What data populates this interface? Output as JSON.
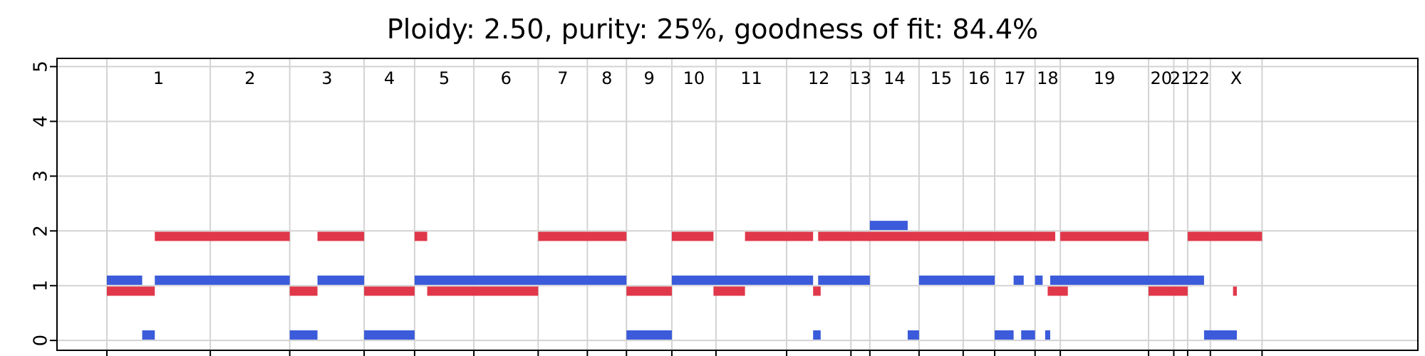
{
  "chart_data": {
    "type": "segments",
    "title": "Ploidy: 2.50, purity: 25%, goodness of fit: 84.4%",
    "xlabel": "",
    "ylabel": "",
    "ylim": [
      -0.18,
      5.15
    ],
    "yticks": [
      0,
      1,
      2,
      3,
      4,
      5
    ],
    "grid": true,
    "colors": {
      "major": "#e0384a",
      "minor": "#3b5bdb"
    },
    "genome_length": 100,
    "chromosomes": [
      {
        "name": "1",
        "start": 0.0,
        "end": 8.2
      },
      {
        "name": "2",
        "start": 8.2,
        "end": 14.5
      },
      {
        "name": "3",
        "start": 14.5,
        "end": 20.4
      },
      {
        "name": "4",
        "start": 20.4,
        "end": 24.4
      },
      {
        "name": "5",
        "start": 24.4,
        "end": 29.1
      },
      {
        "name": "6",
        "start": 29.1,
        "end": 34.2
      },
      {
        "name": "7",
        "start": 34.2,
        "end": 38.1
      },
      {
        "name": "8",
        "start": 38.1,
        "end": 41.2
      },
      {
        "name": "9",
        "start": 41.2,
        "end": 44.8
      },
      {
        "name": "10",
        "start": 44.8,
        "end": 48.3
      },
      {
        "name": "11",
        "start": 48.3,
        "end": 53.9
      },
      {
        "name": "12",
        "start": 53.9,
        "end": 59.0
      },
      {
        "name": "13",
        "start": 59.0,
        "end": 60.5
      },
      {
        "name": "14",
        "start": 60.5,
        "end": 64.4
      },
      {
        "name": "15",
        "start": 64.4,
        "end": 67.9
      },
      {
        "name": "16",
        "start": 67.9,
        "end": 70.4
      },
      {
        "name": "17",
        "start": 70.4,
        "end": 73.6
      },
      {
        "name": "18",
        "start": 73.6,
        "end": 75.6
      },
      {
        "name": "19",
        "start": 75.6,
        "end": 82.6
      },
      {
        "name": "20",
        "start": 82.6,
        "end": 84.6
      },
      {
        "name": "21",
        "start": 84.6,
        "end": 85.7
      },
      {
        "name": "22",
        "start": 85.7,
        "end": 87.5
      },
      {
        "name": "X",
        "start": 87.5,
        "end": 91.6
      }
    ],
    "series": [
      {
        "role": "major",
        "segments": [
          {
            "start": 0.0,
            "end": 3.8,
            "cn": 0.9
          },
          {
            "start": 3.8,
            "end": 14.5,
            "cn": 1.9
          },
          {
            "start": 14.5,
            "end": 16.7,
            "cn": 0.9
          },
          {
            "start": 16.7,
            "end": 20.4,
            "cn": 1.9
          },
          {
            "start": 20.4,
            "end": 24.4,
            "cn": 0.9
          },
          {
            "start": 24.4,
            "end": 25.4,
            "cn": 1.9
          },
          {
            "start": 25.4,
            "end": 34.2,
            "cn": 0.9
          },
          {
            "start": 34.2,
            "end": 41.2,
            "cn": 1.9
          },
          {
            "start": 41.2,
            "end": 44.8,
            "cn": 0.9
          },
          {
            "start": 44.8,
            "end": 48.1,
            "cn": 1.9
          },
          {
            "start": 48.1,
            "end": 50.6,
            "cn": 0.9
          },
          {
            "start": 50.6,
            "end": 56.0,
            "cn": 1.9
          },
          {
            "start": 56.0,
            "end": 56.6,
            "cn": 0.9
          },
          {
            "start": 56.4,
            "end": 75.2,
            "cn": 1.9
          },
          {
            "start": 74.6,
            "end": 76.2,
            "cn": 0.9
          },
          {
            "start": 75.6,
            "end": 82.6,
            "cn": 1.9
          },
          {
            "start": 82.6,
            "end": 85.7,
            "cn": 0.9
          },
          {
            "start": 85.7,
            "end": 91.6,
            "cn": 1.9
          },
          {
            "start": 89.3,
            "end": 89.6,
            "cn": 0.9
          }
        ]
      },
      {
        "role": "minor",
        "segments": [
          {
            "start": 0.0,
            "end": 2.8,
            "cn": 1.1
          },
          {
            "start": 2.8,
            "end": 3.8,
            "cn": 0.1
          },
          {
            "start": 3.8,
            "end": 14.5,
            "cn": 1.1
          },
          {
            "start": 14.5,
            "end": 16.7,
            "cn": 0.1
          },
          {
            "start": 16.7,
            "end": 20.4,
            "cn": 1.1
          },
          {
            "start": 20.4,
            "end": 24.4,
            "cn": 0.1
          },
          {
            "start": 24.4,
            "end": 41.2,
            "cn": 1.1
          },
          {
            "start": 41.2,
            "end": 44.8,
            "cn": 0.1
          },
          {
            "start": 44.8,
            "end": 56.0,
            "cn": 1.1
          },
          {
            "start": 56.0,
            "end": 56.6,
            "cn": 0.1
          },
          {
            "start": 56.4,
            "end": 60.5,
            "cn": 1.1
          },
          {
            "start": 60.5,
            "end": 63.5,
            "cn": 2.1
          },
          {
            "start": 63.5,
            "end": 64.4,
            "cn": 0.1
          },
          {
            "start": 64.4,
            "end": 70.4,
            "cn": 1.1
          },
          {
            "start": 70.4,
            "end": 71.9,
            "cn": 0.1
          },
          {
            "start": 71.9,
            "end": 72.7,
            "cn": 1.1
          },
          {
            "start": 72.5,
            "end": 73.6,
            "cn": 0.1
          },
          {
            "start": 73.6,
            "end": 74.2,
            "cn": 1.1
          },
          {
            "start": 74.4,
            "end": 74.8,
            "cn": 0.1
          },
          {
            "start": 74.8,
            "end": 87.0,
            "cn": 1.1
          },
          {
            "start": 87.0,
            "end": 89.6,
            "cn": 0.1
          }
        ]
      }
    ]
  }
}
